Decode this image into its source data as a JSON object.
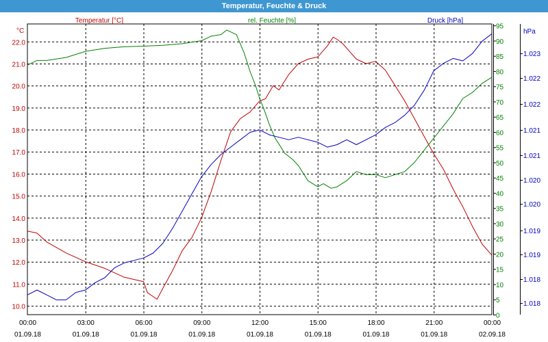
{
  "window": {
    "title": "Temperatur, Feuchte & Druck"
  },
  "colors": {
    "titlebar": "#3f97d1",
    "temperature": "#c00000",
    "humidity": "#008000",
    "pressure": "#0000c0",
    "grid": "#000000"
  },
  "chart_data": {
    "type": "line",
    "grid": true,
    "x_ticks": [
      {
        "time": "00:00",
        "date": "01.09.18"
      },
      {
        "time": "03:00",
        "date": "01.09.18"
      },
      {
        "time": "06:00",
        "date": "01.09.18"
      },
      {
        "time": "09:00",
        "date": "01.09.18"
      },
      {
        "time": "12:00",
        "date": "01.09.18"
      },
      {
        "time": "15:00",
        "date": "01.09.18"
      },
      {
        "time": "18:00",
        "date": "01.09.18"
      },
      {
        "time": "21:00",
        "date": "01.09.18"
      },
      {
        "time": "00:00",
        "date": "02.09.18"
      }
    ],
    "x_range_hours": [
      0,
      24
    ],
    "axes": {
      "temperature": {
        "label": "Temperatur [°C]",
        "unit": "°C",
        "range": [
          9.6,
          22.8
        ],
        "ticks": [
          "10.0",
          "11.0",
          "12.0",
          "13.0",
          "14.0",
          "15.0",
          "16.0",
          "17.0",
          "18.0",
          "19.0",
          "20.0",
          "21.0",
          "22.0"
        ]
      },
      "humidity": {
        "label": "rel. Feuchte [%]",
        "unit": "%",
        "range": [
          0,
          95.5
        ],
        "ticks": [
          "0",
          "5",
          "10",
          "15",
          "20",
          "25",
          "30",
          "35",
          "40",
          "45",
          "50",
          "55",
          "60",
          "65",
          "70",
          "75",
          "80",
          "85",
          "90",
          "95"
        ]
      },
      "pressure": {
        "label": "Druck [hPa]",
        "unit": "hPa",
        "range": [
          1017.6,
          1023.5
        ],
        "ticks": [
          "1.018",
          "1.018",
          "1.019",
          "1.019",
          "1.020",
          "1.020",
          "1.021",
          "1.021",
          "1.022",
          "1.022",
          "1.023",
          "1.023"
        ]
      }
    },
    "series": [
      {
        "name": "Temperatur [°C]",
        "axis": "temperature",
        "x": [
          0,
          0.5,
          1,
          2,
          3,
          4,
          4.5,
          5,
          6,
          6.2,
          6.7,
          7,
          7.5,
          8,
          8.5,
          9,
          9.5,
          10,
          10.5,
          11,
          11.5,
          12,
          12.3,
          12.7,
          13,
          13.5,
          14,
          14.5,
          15,
          15.5,
          15.8,
          16,
          16.3,
          16.7,
          17,
          17.5,
          18,
          18.5,
          19,
          19.5,
          20,
          20.5,
          21,
          21.5,
          22,
          22.5,
          23,
          23.5,
          24
        ],
        "values": [
          13.4,
          13.3,
          12.9,
          12.4,
          12.0,
          11.7,
          11.5,
          11.3,
          11.1,
          10.6,
          10.3,
          10.8,
          11.6,
          12.5,
          13.1,
          14.0,
          15.2,
          16.6,
          17.9,
          18.5,
          18.8,
          19.3,
          19.4,
          20.0,
          19.8,
          20.5,
          21.0,
          21.2,
          21.3,
          21.8,
          22.2,
          22.1,
          21.9,
          21.5,
          21.2,
          21.0,
          21.1,
          20.7,
          20.0,
          19.3,
          18.5,
          17.7,
          16.9,
          16.2,
          15.3,
          14.5,
          13.6,
          12.8,
          12.3
        ]
      },
      {
        "name": "rel. Feuchte [%]",
        "axis": "humidity",
        "x": [
          0,
          0.5,
          1,
          2,
          3,
          4,
          5,
          6,
          7,
          8,
          9,
          9.5,
          10,
          10.3,
          10.8,
          11.2,
          11.5,
          11.8,
          12,
          12.2,
          12.5,
          12.8,
          13,
          13.3,
          13.7,
          14,
          14.5,
          15,
          15.3,
          15.7,
          16,
          16.5,
          17,
          17.5,
          18,
          18.5,
          19,
          19.5,
          20,
          20.5,
          21,
          21.5,
          22,
          22.5,
          23,
          23.5,
          24
        ],
        "values": [
          82,
          83.5,
          83.5,
          84.5,
          86.5,
          87.5,
          88,
          88.2,
          88.5,
          89,
          90,
          91.5,
          92,
          93.5,
          92,
          86,
          80,
          75,
          71,
          68,
          62.5,
          58,
          56,
          53,
          51,
          49,
          44,
          42,
          43,
          41.5,
          42,
          44,
          47,
          46,
          46,
          45,
          46,
          47,
          50,
          54,
          58,
          62,
          66,
          71,
          73,
          76,
          78
        ]
      },
      {
        "name": "Druck [hPa]",
        "axis": "pressure",
        "x": [
          0,
          0.5,
          1,
          1.5,
          2,
          2.5,
          3,
          3.5,
          4,
          4.5,
          5,
          5.5,
          6,
          6.5,
          7,
          7.5,
          8,
          8.5,
          9,
          9.5,
          10,
          10.5,
          11,
          11.5,
          12,
          12.5,
          13,
          13.5,
          14,
          14.5,
          15,
          15.5,
          16,
          16.5,
          17,
          17.5,
          18,
          18.5,
          19,
          19.5,
          20,
          20.5,
          21,
          21.5,
          22,
          22.5,
          23,
          23.5,
          24
        ],
        "values": [
          1018.0,
          1018.1,
          1018.0,
          1017.9,
          1017.9,
          1018.05,
          1018.1,
          1018.25,
          1018.35,
          1018.55,
          1018.65,
          1018.7,
          1018.75,
          1018.85,
          1019.05,
          1019.35,
          1019.7,
          1020.05,
          1020.4,
          1020.65,
          1020.85,
          1021.0,
          1021.15,
          1021.3,
          1021.35,
          1021.25,
          1021.2,
          1021.15,
          1021.2,
          1021.15,
          1021.1,
          1021.0,
          1021.05,
          1021.15,
          1021.05,
          1021.15,
          1021.25,
          1021.4,
          1021.5,
          1021.65,
          1021.85,
          1022.15,
          1022.55,
          1022.7,
          1022.8,
          1022.75,
          1022.9,
          1023.15,
          1023.3
        ]
      }
    ]
  }
}
